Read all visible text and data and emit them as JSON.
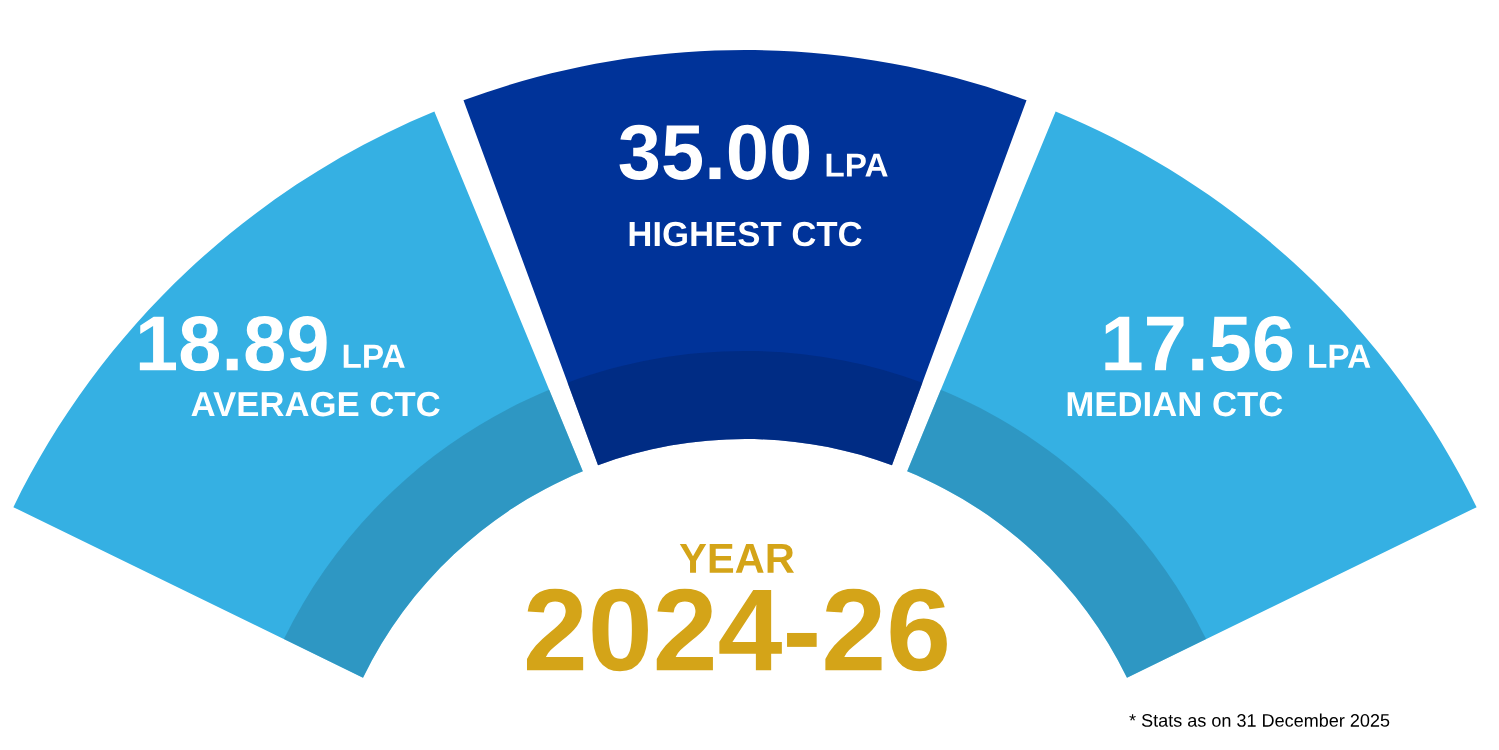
{
  "chart_data": {
    "type": "other",
    "title": "YEAR",
    "subtitle": "2024-26",
    "categories": [
      "AVERAGE CTC",
      "HIGHEST CTC",
      "MEDIAN CTC"
    ],
    "values": [
      18.89,
      35.0,
      17.56
    ],
    "value_labels": [
      "18.89",
      "35.00",
      "17.56"
    ],
    "ylabel": "LPA",
    "colors": [
      "#35b0e3",
      "#003399",
      "#35b0e3"
    ],
    "annotations": [
      "* Stats as on 31 December 2025"
    ]
  }
}
